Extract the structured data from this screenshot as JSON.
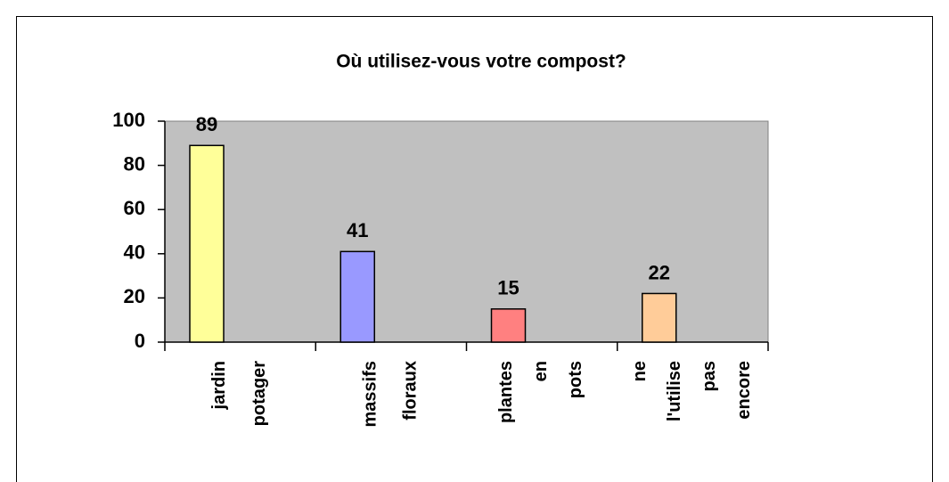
{
  "chart_data": {
    "type": "bar",
    "title": "Où utilisez-vous votre compost?",
    "categories": [
      "jardin potager",
      "massifs floraux",
      "plantes en pots",
      "ne l'utilise pas encore"
    ],
    "values": [
      89,
      41,
      15,
      22
    ],
    "colors": [
      "#ffff99",
      "#9999ff",
      "#ff8080",
      "#ffcc99"
    ],
    "ylim": [
      0,
      100
    ],
    "yticks": [
      0,
      20,
      40,
      60,
      80,
      100
    ]
  }
}
